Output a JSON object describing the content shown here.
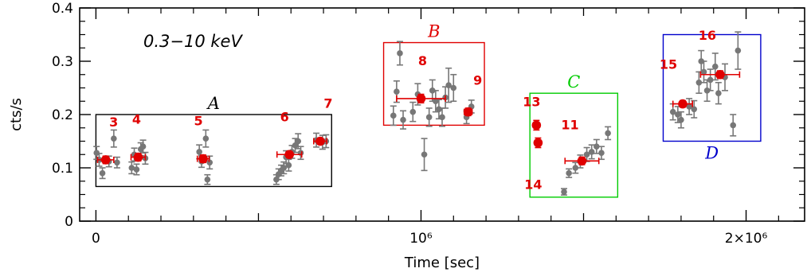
{
  "chart_data": {
    "type": "scatter",
    "xlabel": "Time [sec]",
    "ylabel": "cts/s",
    "xlim": [
      -50000,
      2180000
    ],
    "ylim": [
      0,
      0.4
    ],
    "x_ticks": [
      {
        "value": 0,
        "label": "0"
      },
      {
        "value": 1000000,
        "label": "10⁶"
      },
      {
        "value": 2000000,
        "label": "2×10⁶"
      }
    ],
    "y_ticks": [
      {
        "value": 0,
        "label": "0"
      },
      {
        "value": 0.1,
        "label": "0.1"
      },
      {
        "value": 0.2,
        "label": "0.2"
      },
      {
        "value": 0.3,
        "label": "0.3"
      },
      {
        "value": 0.4,
        "label": "0.4"
      }
    ],
    "annotation": "0.3−10 keV",
    "colors": {
      "gray": "#777777",
      "red": "#e00000",
      "A": "#000000",
      "B": "#e00000",
      "C": "#00cc00",
      "D": "#0000cc"
    },
    "groups": [
      {
        "label": "A",
        "x0": 0,
        "x1": 725000,
        "y0": 0.065,
        "y1": 0.2
      },
      {
        "label": "B",
        "x0": 885000,
        "x1": 1195000,
        "y0": 0.18,
        "y1": 0.335
      },
      {
        "label": "C",
        "x0": 1335000,
        "x1": 1605000,
        "y0": 0.045,
        "y1": 0.24
      },
      {
        "label": "D",
        "x0": 1745000,
        "x1": 2045000,
        "y0": 0.15,
        "y1": 0.35
      }
    ],
    "observations": [
      {
        "id": "3",
        "x": 30000,
        "xerr": 25000,
        "y": 0.115,
        "yerr": 0.007
      },
      {
        "id": "4",
        "x": 130000,
        "xerr": 22000,
        "y": 0.12,
        "yerr": 0.007
      },
      {
        "id": "5",
        "x": 330000,
        "xerr": 18000,
        "y": 0.117,
        "yerr": 0.007
      },
      {
        "id": "6",
        "x": 595000,
        "xerr": 38000,
        "y": 0.125,
        "yerr": 0.006
      },
      {
        "id": "7",
        "x": 690000,
        "xerr": 20000,
        "y": 0.15,
        "yerr": 0.005
      },
      {
        "id": "8",
        "x": 1000000,
        "xerr": 75000,
        "y": 0.23,
        "yerr": 0.008
      },
      {
        "id": "9",
        "x": 1145000,
        "xerr": 12000,
        "y": 0.205,
        "yerr": 0.007
      },
      {
        "id": "13",
        "x": 1355000,
        "xerr": 0,
        "y": 0.18,
        "yerr": 0.009
      },
      {
        "id": "14",
        "x": 1360000,
        "xerr": 0,
        "y": 0.147,
        "yerr": 0.009
      },
      {
        "id": "11",
        "x": 1495000,
        "xerr": 52000,
        "y": 0.113,
        "yerr": 0.007
      },
      {
        "id": "15",
        "x": 1805000,
        "xerr": 30000,
        "y": 0.22,
        "yerr": 0.006
      },
      {
        "id": "16",
        "x": 1920000,
        "xerr": 60000,
        "y": 0.275,
        "yerr": 0.007
      }
    ],
    "snapshots": [
      {
        "x": 2000,
        "y": 0.128,
        "e": 0.012
      },
      {
        "x": 10000,
        "y": 0.115,
        "e": 0.012
      },
      {
        "x": 20000,
        "y": 0.09,
        "e": 0.01
      },
      {
        "x": 40000,
        "y": 0.112,
        "e": 0.01
      },
      {
        "x": 55000,
        "y": 0.155,
        "e": 0.016
      },
      {
        "x": 65000,
        "y": 0.11,
        "e": 0.01
      },
      {
        "x": 110000,
        "y": 0.1,
        "e": 0.011
      },
      {
        "x": 118000,
        "y": 0.125,
        "e": 0.012
      },
      {
        "x": 125000,
        "y": 0.097,
        "e": 0.01
      },
      {
        "x": 138000,
        "y": 0.135,
        "e": 0.012
      },
      {
        "x": 145000,
        "y": 0.14,
        "e": 0.012
      },
      {
        "x": 152000,
        "y": 0.118,
        "e": 0.011
      },
      {
        "x": 318000,
        "y": 0.13,
        "e": 0.013
      },
      {
        "x": 325000,
        "y": 0.112,
        "e": 0.011
      },
      {
        "x": 338000,
        "y": 0.155,
        "e": 0.016
      },
      {
        "x": 343000,
        "y": 0.078,
        "e": 0.009
      },
      {
        "x": 350000,
        "y": 0.11,
        "e": 0.012
      },
      {
        "x": 555000,
        "y": 0.078,
        "e": 0.009
      },
      {
        "x": 562000,
        "y": 0.088,
        "e": 0.01
      },
      {
        "x": 570000,
        "y": 0.095,
        "e": 0.01
      },
      {
        "x": 578000,
        "y": 0.1,
        "e": 0.011
      },
      {
        "x": 585000,
        "y": 0.12,
        "e": 0.012
      },
      {
        "x": 593000,
        "y": 0.105,
        "e": 0.011
      },
      {
        "x": 603000,
        "y": 0.13,
        "e": 0.012
      },
      {
        "x": 613000,
        "y": 0.142,
        "e": 0.013
      },
      {
        "x": 622000,
        "y": 0.15,
        "e": 0.014
      },
      {
        "x": 630000,
        "y": 0.128,
        "e": 0.012
      },
      {
        "x": 678000,
        "y": 0.152,
        "e": 0.013
      },
      {
        "x": 697000,
        "y": 0.148,
        "e": 0.013
      },
      {
        "x": 708000,
        "y": 0.15,
        "e": 0.012
      },
      {
        "x": 915000,
        "y": 0.198,
        "e": 0.018
      },
      {
        "x": 925000,
        "y": 0.243,
        "e": 0.02
      },
      {
        "x": 935000,
        "y": 0.315,
        "e": 0.022
      },
      {
        "x": 945000,
        "y": 0.19,
        "e": 0.017
      },
      {
        "x": 975000,
        "y": 0.205,
        "e": 0.018
      },
      {
        "x": 990000,
        "y": 0.238,
        "e": 0.02
      },
      {
        "x": 1010000,
        "y": 0.125,
        "e": 0.03
      },
      {
        "x": 1025000,
        "y": 0.195,
        "e": 0.017
      },
      {
        "x": 1035000,
        "y": 0.245,
        "e": 0.02
      },
      {
        "x": 1045000,
        "y": 0.225,
        "e": 0.02
      },
      {
        "x": 1055000,
        "y": 0.21,
        "e": 0.018
      },
      {
        "x": 1065000,
        "y": 0.195,
        "e": 0.017
      },
      {
        "x": 1075000,
        "y": 0.232,
        "e": 0.02
      },
      {
        "x": 1085000,
        "y": 0.255,
        "e": 0.032
      },
      {
        "x": 1100000,
        "y": 0.25,
        "e": 0.025
      },
      {
        "x": 1140000,
        "y": 0.195,
        "e": 0.012
      },
      {
        "x": 1155000,
        "y": 0.215,
        "e": 0.012
      },
      {
        "x": 1440000,
        "y": 0.055,
        "e": 0.006
      },
      {
        "x": 1455000,
        "y": 0.09,
        "e": 0.008
      },
      {
        "x": 1475000,
        "y": 0.1,
        "e": 0.01
      },
      {
        "x": 1490000,
        "y": 0.112,
        "e": 0.012
      },
      {
        "x": 1510000,
        "y": 0.125,
        "e": 0.013
      },
      {
        "x": 1525000,
        "y": 0.13,
        "e": 0.013
      },
      {
        "x": 1540000,
        "y": 0.14,
        "e": 0.013
      },
      {
        "x": 1555000,
        "y": 0.128,
        "e": 0.012
      },
      {
        "x": 1575000,
        "y": 0.165,
        "e": 0.012
      },
      {
        "x": 1775000,
        "y": 0.205,
        "e": 0.015
      },
      {
        "x": 1790000,
        "y": 0.2,
        "e": 0.015
      },
      {
        "x": 1800000,
        "y": 0.19,
        "e": 0.015
      },
      {
        "x": 1825000,
        "y": 0.215,
        "e": 0.015
      },
      {
        "x": 1840000,
        "y": 0.21,
        "e": 0.016
      },
      {
        "x": 1855000,
        "y": 0.26,
        "e": 0.02
      },
      {
        "x": 1862000,
        "y": 0.3,
        "e": 0.02
      },
      {
        "x": 1870000,
        "y": 0.28,
        "e": 0.02
      },
      {
        "x": 1880000,
        "y": 0.245,
        "e": 0.02
      },
      {
        "x": 1890000,
        "y": 0.265,
        "e": 0.02
      },
      {
        "x": 1905000,
        "y": 0.29,
        "e": 0.025
      },
      {
        "x": 1915000,
        "y": 0.24,
        "e": 0.02
      },
      {
        "x": 1935000,
        "y": 0.27,
        "e": 0.025
      },
      {
        "x": 1960000,
        "y": 0.18,
        "e": 0.02
      },
      {
        "x": 1975000,
        "y": 0.32,
        "e": 0.035
      }
    ]
  }
}
